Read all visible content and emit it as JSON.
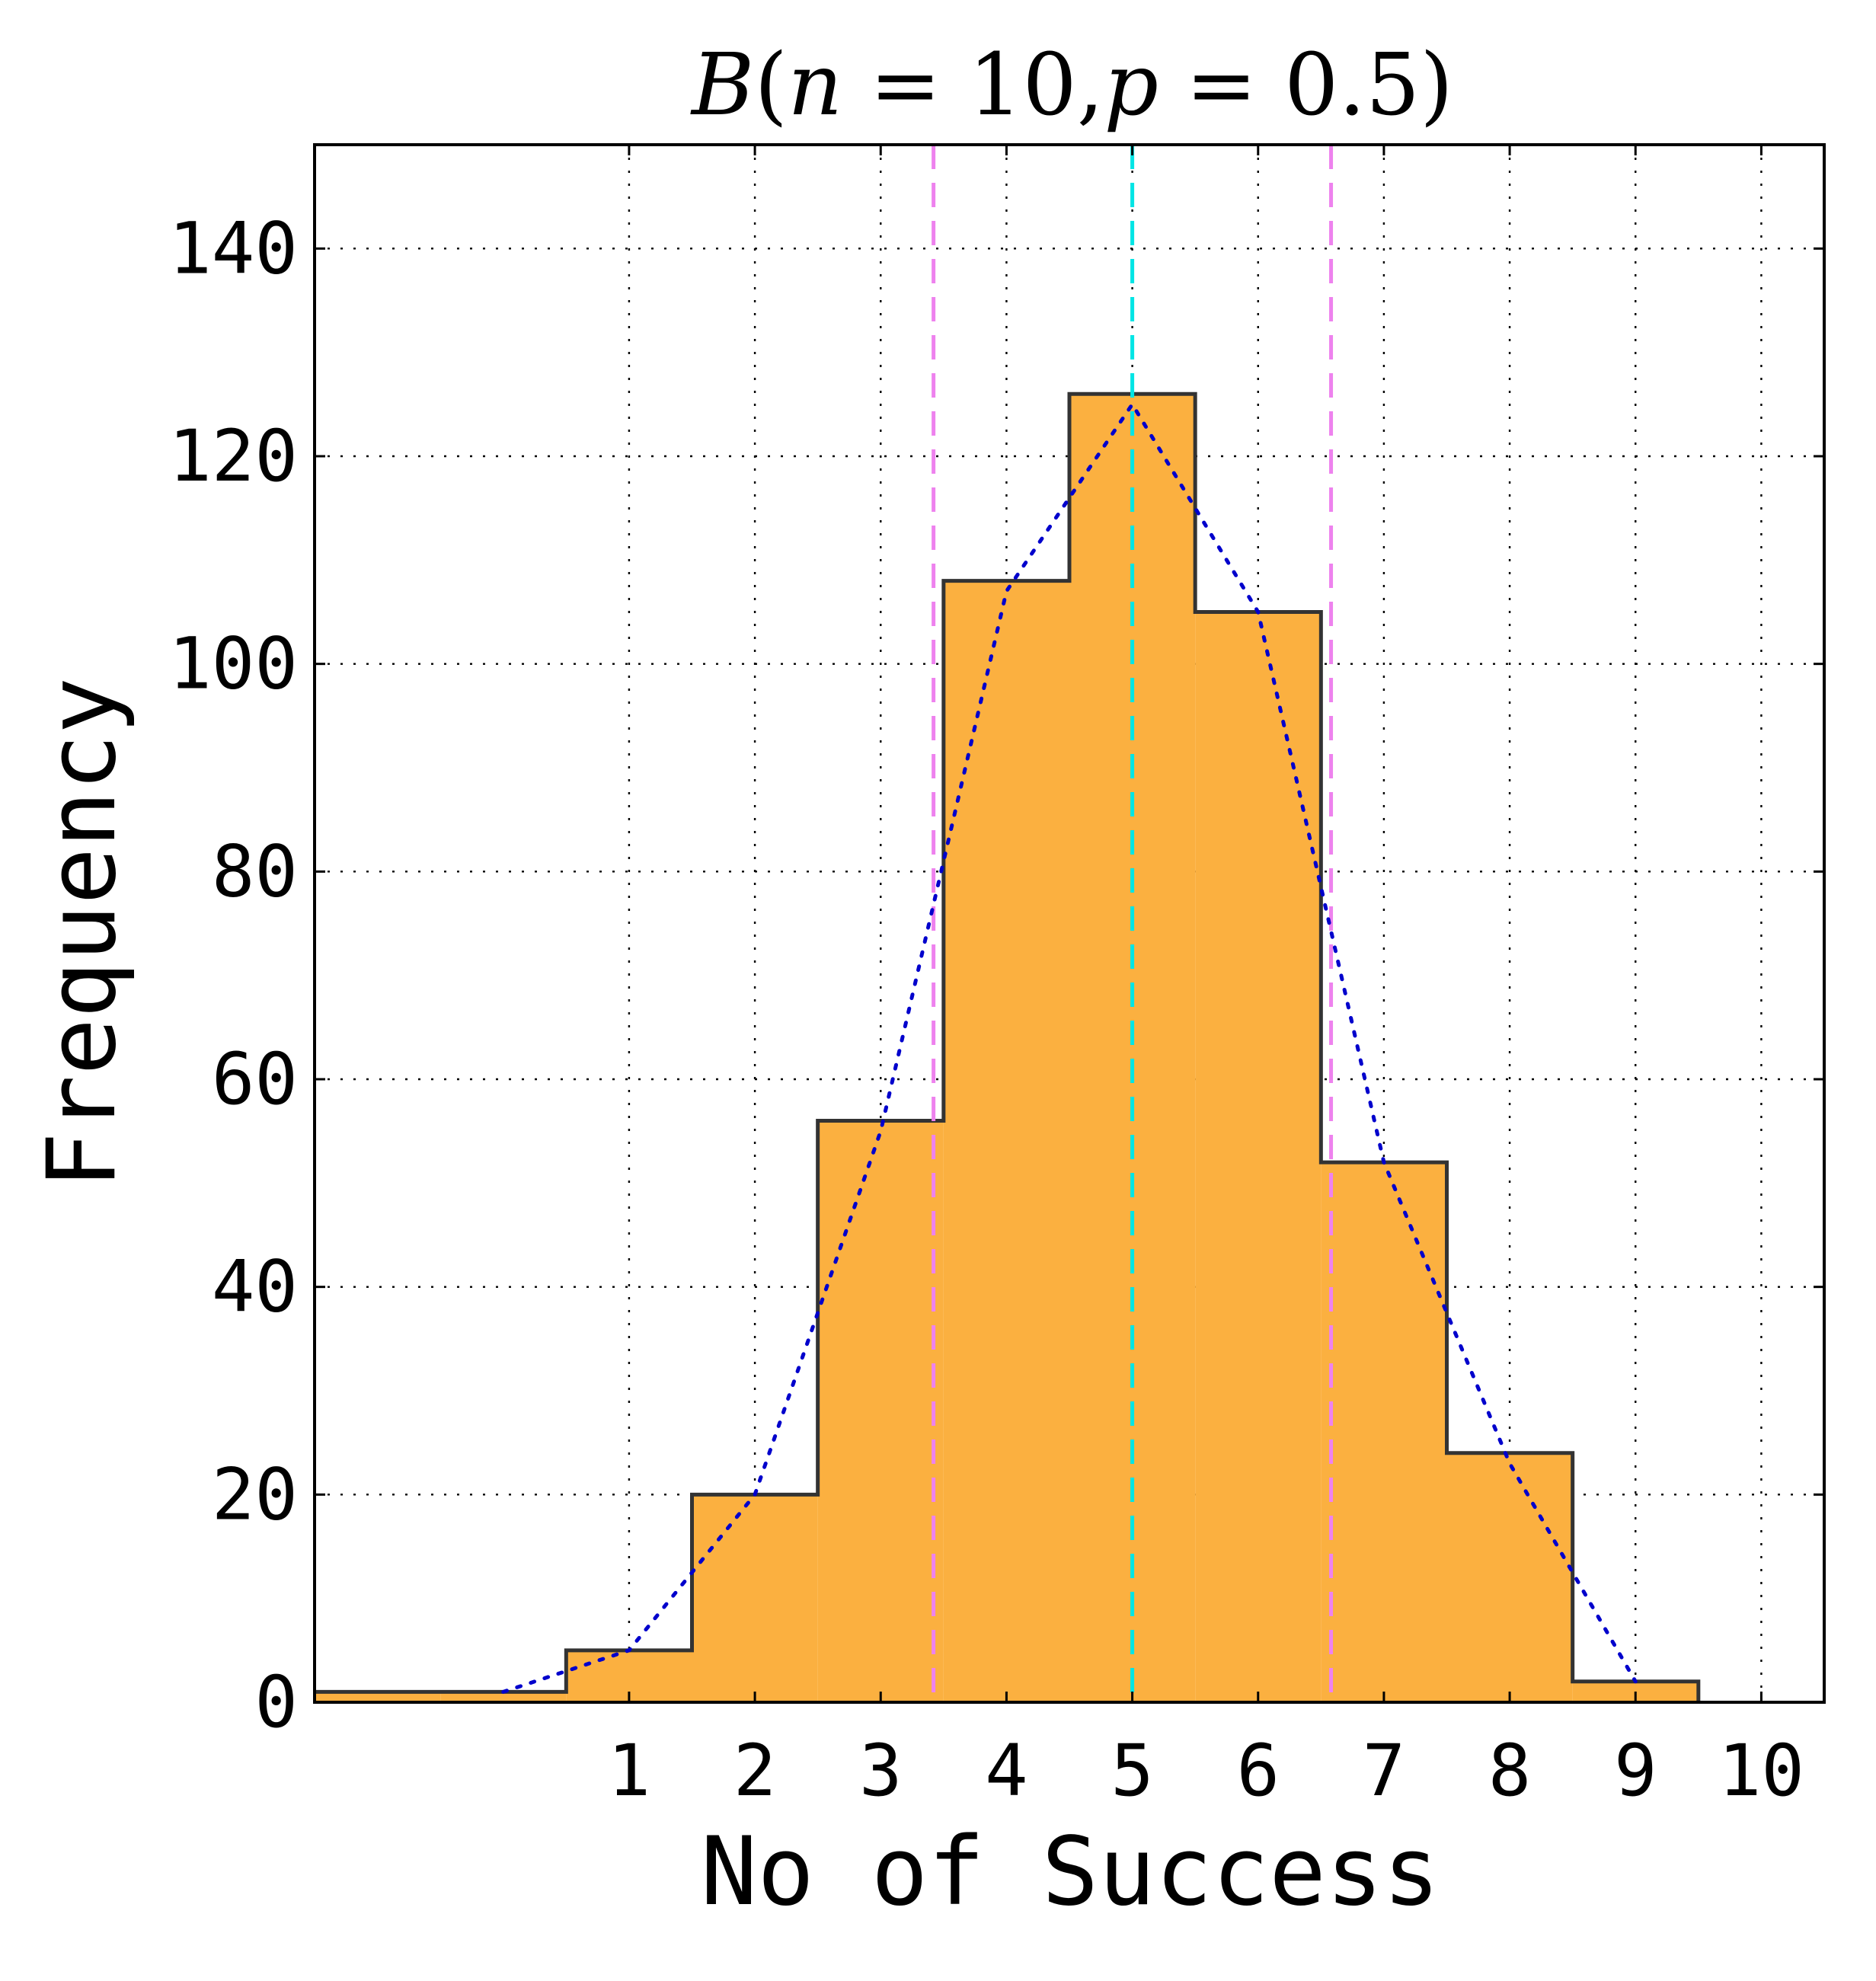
{
  "chart_data": {
    "type": "bar",
    "title": "B(n = 10, p = 0.5)",
    "title_parts": {
      "prefix": "B",
      "n_label": "n",
      "n_value": "10",
      "p_label": "p",
      "p_value": "0.5"
    },
    "xlabel": "No of Success",
    "ylabel": "Frequency",
    "xlim": [
      -1.5,
      10.5
    ],
    "ylim": [
      0,
      150
    ],
    "xticks": [
      1,
      2,
      3,
      4,
      5,
      6,
      7,
      8,
      9,
      10
    ],
    "yticks": [
      0,
      20,
      40,
      60,
      80,
      100,
      120,
      140
    ],
    "grid": true,
    "histogram": {
      "bin_edges": [
        -1.5,
        -0.5,
        0.5,
        1.5,
        2.5,
        3.5,
        4.5,
        5.5,
        6.5,
        7.5,
        8.5,
        9.5
      ],
      "counts": [
        1,
        1,
        5,
        20,
        56,
        108,
        126,
        105,
        52,
        24,
        2
      ],
      "fill": "#FBB040",
      "edge": "#333333"
    },
    "expected_curve": {
      "x": [
        0,
        1,
        2,
        3,
        4,
        5,
        6,
        7,
        8,
        9
      ],
      "y": [
        1,
        5,
        20,
        55,
        107,
        125,
        105,
        52,
        23,
        2
      ],
      "color": "#0000CC",
      "style": "dotted"
    },
    "vlines": [
      {
        "x": 5.0,
        "color": "#00E5E5",
        "style": "dashed"
      },
      {
        "x": 3.42,
        "color": "#EE82EE",
        "style": "dashed"
      },
      {
        "x": 6.58,
        "color": "#EE82EE",
        "style": "dashed"
      }
    ]
  }
}
